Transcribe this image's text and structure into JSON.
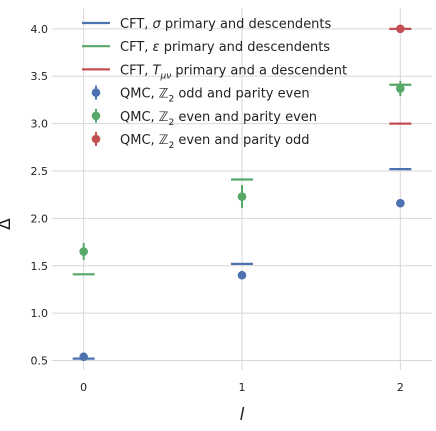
{
  "chart_data": {
    "type": "scatter",
    "xlabel": "l",
    "ylabel": "Δ",
    "xlim": [
      -0.2,
      2.2
    ],
    "ylim": [
      0.4,
      4.22
    ],
    "x_ticks": [
      0,
      1,
      2
    ],
    "y_ticks": [
      0.5,
      1.0,
      1.5,
      2.0,
      2.5,
      3.0,
      3.5,
      4.0
    ],
    "x_tick_labels": [
      "0",
      "1",
      "2"
    ],
    "y_tick_labels": [
      "0.5",
      "1.0",
      "1.5",
      "2.0",
      "2.5",
      "3.0",
      "3.5",
      "4.0"
    ],
    "grid": true,
    "legend_position": "top-center",
    "series": [
      {
        "kind": "cft",
        "color": "#4c72b0",
        "legend": {
          "prefix": "CFT, ",
          "symbol": "σ",
          "symbol_italic": true,
          "sub": "",
          "suffix": " primary and descendents"
        },
        "points": [
          {
            "x": 0,
            "y": 0.52
          },
          {
            "x": 1,
            "y": 1.52
          },
          {
            "x": 2,
            "y": 2.52
          }
        ]
      },
      {
        "kind": "cft",
        "color": "#55a868",
        "legend": {
          "prefix": "CFT, ",
          "symbol": "ε",
          "symbol_italic": true,
          "sub": "",
          "suffix": " primary and descendents"
        },
        "points": [
          {
            "x": 0,
            "y": 1.41
          },
          {
            "x": 1,
            "y": 2.41
          },
          {
            "x": 2,
            "y": 3.41
          }
        ]
      },
      {
        "kind": "cft",
        "color": "#c44e52",
        "legend": {
          "prefix": "CFT, ",
          "symbol": "T",
          "symbol_italic": true,
          "sub": "μν",
          "suffix": " primary and a descendent"
        },
        "points": [
          {
            "x": 2,
            "y": 3.0
          },
          {
            "x": 2,
            "y": 4.0
          }
        ]
      },
      {
        "kind": "qmc",
        "color": "#4c72b0",
        "legend": {
          "prefix": "QMC, ",
          "symbol": "ℤ",
          "symbol_italic": false,
          "sub": "2",
          "suffix": " odd and parity even"
        },
        "points": [
          {
            "x": 0,
            "y": 0.54,
            "err": 0.03
          },
          {
            "x": 1,
            "y": 1.4,
            "err": 0.02
          },
          {
            "x": 2,
            "y": 2.16,
            "err": 0.02
          }
        ]
      },
      {
        "kind": "qmc",
        "color": "#55a868",
        "legend": {
          "prefix": "QMC, ",
          "symbol": "ℤ",
          "symbol_italic": false,
          "sub": "2",
          "suffix": " even and parity even"
        },
        "points": [
          {
            "x": 0,
            "y": 1.65,
            "err": 0.09
          },
          {
            "x": 1,
            "y": 2.23,
            "err": 0.12
          },
          {
            "x": 2,
            "y": 3.37,
            "err": 0.08
          }
        ]
      },
      {
        "kind": "qmc",
        "color": "#c44e52",
        "legend": {
          "prefix": "QMC, ",
          "symbol": "ℤ",
          "symbol_italic": false,
          "sub": "2",
          "suffix": " even and parity odd"
        },
        "points": [
          {
            "x": 2,
            "y": 4.0,
            "err": 0.04
          }
        ]
      }
    ]
  }
}
